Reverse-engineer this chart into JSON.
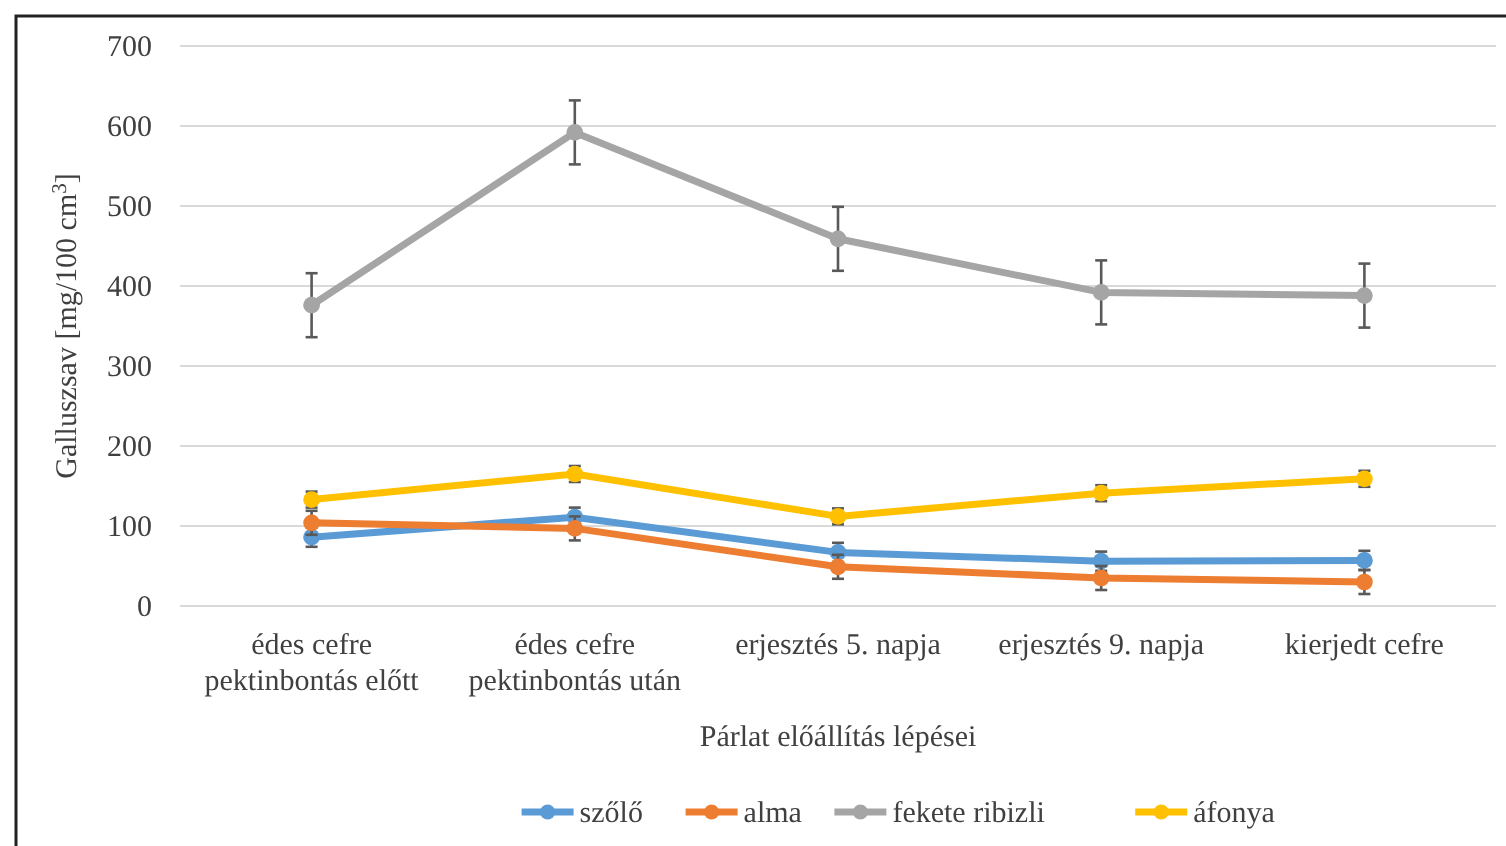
{
  "chart_data": {
    "type": "line",
    "xlabel": "Párlat előállítás lépései",
    "ylabel": "Galluszsav [mg/100 cm$^{3}$]",
    "categories": [
      "édes cefre\npektinbontás előtt",
      "édes cefre\npektinbontás után",
      "erjesztés 5. napja",
      "erjesztés 9. napja",
      "kierjedt cefre"
    ],
    "series": [
      {
        "name": "szőlő",
        "color": "#5b9bd5",
        "values": [
          86,
          111,
          67,
          56,
          57
        ],
        "errors": [
          12,
          12,
          12,
          12,
          12
        ]
      },
      {
        "name": "alma",
        "color": "#ed7d31",
        "values": [
          104,
          97,
          49,
          35,
          30
        ],
        "errors": [
          15,
          15,
          15,
          15,
          15
        ]
      },
      {
        "name": "fekete ribizli",
        "color": "#a5a5a5",
        "values": [
          376,
          592,
          459,
          392,
          388
        ],
        "errors": [
          40,
          40,
          40,
          40,
          40
        ]
      },
      {
        "name": "áfonya",
        "color": "#ffc000",
        "values": [
          133,
          165,
          112,
          141,
          159
        ],
        "errors": [
          10,
          10,
          10,
          10,
          10
        ]
      }
    ],
    "ylim": [
      0,
      700
    ],
    "yticks": [
      0,
      100,
      200,
      300,
      400,
      500,
      600,
      700
    ],
    "grid": "y",
    "legend": "bottom",
    "marker": "circle",
    "line_style": "solid"
  }
}
